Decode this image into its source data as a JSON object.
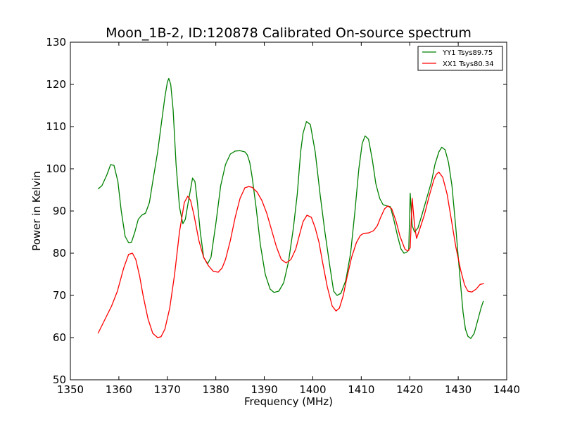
{
  "chart_data": {
    "type": "line",
    "title": "Moon_1B-2, ID:120878 Calibrated On-source spectrum",
    "xlabel": "Frequency (MHz)",
    "ylabel": "Power in Kelvin",
    "xlim": [
      1350,
      1440
    ],
    "ylim": [
      50,
      130
    ],
    "xticks": [
      1350,
      1360,
      1370,
      1380,
      1390,
      1400,
      1410,
      1420,
      1430,
      1440
    ],
    "yticks": [
      50,
      60,
      70,
      80,
      90,
      100,
      110,
      120,
      130
    ],
    "xtick_labels": [
      "1350",
      "1360",
      "1370",
      "1380",
      "1390",
      "1400",
      "1410",
      "1420",
      "1430",
      "1440"
    ],
    "ytick_labels": [
      "50",
      "60",
      "70",
      "80",
      "90",
      "100",
      "110",
      "120",
      "130"
    ],
    "grid": false,
    "legend_position": "top-right",
    "series": [
      {
        "name": "YY1 Tsys89.75",
        "color": "#008000",
        "x": [
          1355.7,
          1356.5,
          1357.5,
          1358.3,
          1359,
          1359.8,
          1360.5,
          1361.3,
          1362,
          1362.6,
          1363.3,
          1364,
          1364.7,
          1365.5,
          1366.3,
          1367,
          1368,
          1368.8,
          1369.5,
          1370,
          1370.3,
          1370.7,
          1371.2,
          1371.8,
          1372.5,
          1373.2,
          1373.7,
          1374.3,
          1375.2,
          1375.7,
          1376.2,
          1376.8,
          1377.5,
          1378.3,
          1379,
          1380,
          1381,
          1382,
          1383,
          1384,
          1385,
          1386,
          1386.5,
          1387,
          1387.5,
          1388.3,
          1389.2,
          1390.2,
          1391.2,
          1392,
          1393,
          1394,
          1395,
          1396,
          1396.8,
          1397.5,
          1398,
          1398.7,
          1399.5,
          1400.5,
          1401.5,
          1402.5,
          1403.5,
          1404.3,
          1405,
          1405.8,
          1406.8,
          1407.8,
          1408.7,
          1409.5,
          1410.2,
          1410.8,
          1411.5,
          1412.3,
          1413,
          1413.8,
          1414.5,
          1415.3,
          1416,
          1416.7,
          1417.5,
          1418.2,
          1418.8,
          1419.3,
          1419.8,
          1420.1,
          1420.5,
          1421,
          1421.7,
          1422.5,
          1423.5,
          1424.5,
          1425.2,
          1426,
          1426.6,
          1427.3,
          1428,
          1428.7,
          1429.5,
          1430.3,
          1431,
          1431.5,
          1432,
          1432.6,
          1433.3,
          1434,
          1434.7,
          1435.2
        ],
        "y": [
          95.2,
          96,
          98.5,
          101,
          100.8,
          97,
          90,
          84,
          82.5,
          82.6,
          85,
          88,
          89,
          89.5,
          92,
          97,
          104,
          111,
          117,
          120.5,
          121.4,
          120,
          114,
          101,
          91,
          87,
          88,
          92,
          97.8,
          97,
          92,
          85,
          79,
          77.5,
          79,
          87,
          96,
          101,
          103.5,
          104.2,
          104.3,
          104,
          103.3,
          101.5,
          98,
          91,
          82,
          75,
          71.5,
          70.7,
          71,
          73,
          78,
          86,
          94,
          104,
          108.5,
          111.2,
          110.5,
          104,
          94,
          85,
          77,
          71,
          70,
          70.5,
          73.5,
          80,
          90,
          100,
          106,
          107.8,
          107,
          102,
          96.5,
          93,
          91.5,
          91.2,
          91,
          88,
          84,
          81,
          80,
          80.2,
          80.7,
          94.2,
          86.5,
          85,
          86,
          89,
          93,
          97,
          101,
          104,
          105.1,
          104.5,
          101.5,
          96,
          86,
          75,
          66,
          62,
          60.3,
          59.8,
          61,
          64,
          67,
          68.7
        ]
      },
      {
        "name": "XX1 Tsys80.34",
        "color": "#ff0000",
        "x": [
          1355.7,
          1357,
          1358.5,
          1359.7,
          1361,
          1362,
          1362.8,
          1363.5,
          1364.3,
          1365,
          1366,
          1367,
          1368,
          1368.7,
          1369.5,
          1370.5,
          1371.5,
          1372.5,
          1373.5,
          1374.2,
          1374.8,
          1375.5,
          1376.5,
          1377.5,
          1378.5,
          1379.5,
          1380.5,
          1381.3,
          1382,
          1383,
          1384,
          1385,
          1386,
          1386.8,
          1387.5,
          1388.5,
          1389.5,
          1390.5,
          1391.5,
          1392.5,
          1393.5,
          1394.5,
          1395.5,
          1396.5,
          1397.3,
          1398,
          1398.8,
          1399.7,
          1400.5,
          1401.3,
          1402,
          1403,
          1404,
          1404.8,
          1405.5,
          1406.3,
          1407,
          1408,
          1409,
          1409.8,
          1410.5,
          1411.5,
          1412.5,
          1413.3,
          1414,
          1414.8,
          1415.5,
          1416.3,
          1417.2,
          1418,
          1419,
          1419.6,
          1420.1,
          1420.5,
          1421,
          1421.4,
          1422,
          1423,
          1424,
          1425,
          1425.5,
          1426,
          1426.8,
          1427.7,
          1428.5,
          1429.5,
          1430.5,
          1431.3,
          1432,
          1432.8,
          1433.7,
          1434.5,
          1435.3
        ],
        "y": [
          61,
          64,
          67.5,
          71,
          76.5,
          79.7,
          80,
          78.5,
          74.5,
          70,
          64.5,
          61,
          60,
          60.2,
          62,
          67,
          75,
          85,
          92,
          93.5,
          92.5,
          89,
          83,
          79,
          77,
          75.7,
          75.5,
          76.5,
          78.5,
          83,
          88.5,
          93,
          95.5,
          95.8,
          95.6,
          94.5,
          92.5,
          89.5,
          85.5,
          81.5,
          78.5,
          77.7,
          78.5,
          81,
          84.5,
          87.5,
          89,
          88.5,
          86,
          82.5,
          78,
          72,
          67.5,
          66.3,
          67,
          70,
          74,
          79,
          82.5,
          84.2,
          84.7,
          84.8,
          85.3,
          86.5,
          88.5,
          90.5,
          91.2,
          90.5,
          87.5,
          84,
          81,
          80.5,
          81.3,
          93,
          86.5,
          83.5,
          85.5,
          89,
          93.5,
          97.5,
          98.7,
          99.2,
          98,
          94,
          88.5,
          81.5,
          76,
          72.5,
          71,
          70.8,
          71.5,
          72.6,
          72.8
        ]
      }
    ]
  }
}
